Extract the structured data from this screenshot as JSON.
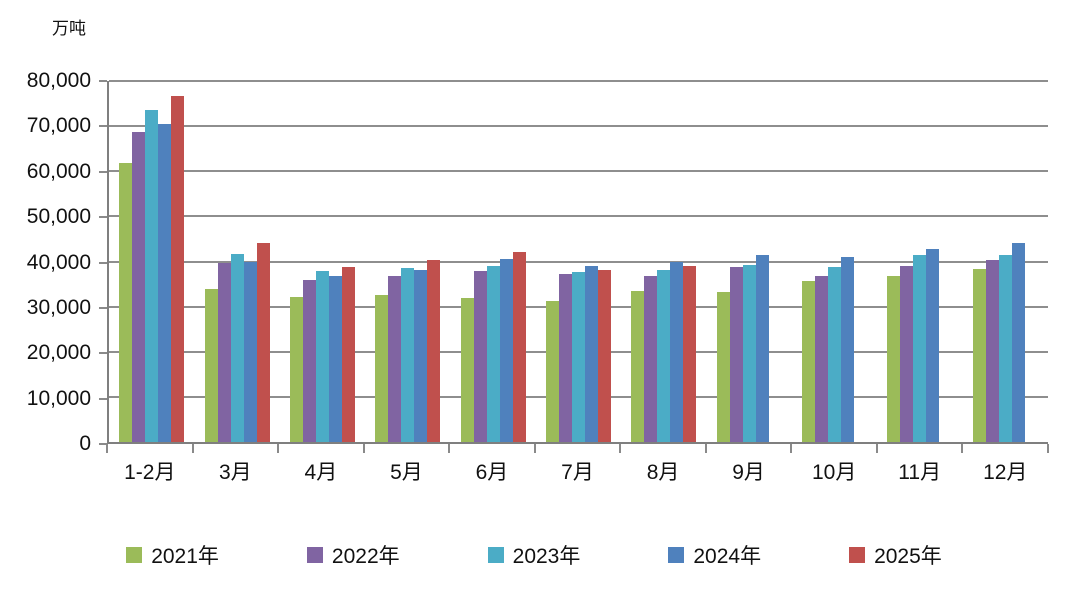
{
  "chart_data": {
    "type": "bar",
    "title": "",
    "xlabel": "",
    "ylabel": "万吨",
    "unit_label": "万吨",
    "categories": [
      "1-2月",
      "3月",
      "4月",
      "5月",
      "6月",
      "7月",
      "8月",
      "9月",
      "10月",
      "11月",
      "12月"
    ],
    "series": [
      {
        "name": "2021年",
        "color": "#9BBB59",
        "values": [
          61800,
          33900,
          32100,
          32600,
          32000,
          31300,
          33500,
          33200,
          35700,
          36900,
          38300
        ]
      },
      {
        "name": "2022年",
        "color": "#8064A2",
        "values": [
          68800,
          39600,
          36000,
          36700,
          37800,
          37200,
          36900,
          38700,
          36900,
          38900,
          40300
        ]
      },
      {
        "name": "2023年",
        "color": "#4BACC6",
        "values": [
          73600,
          41600,
          38000,
          38500,
          39000,
          37700,
          38200,
          39300,
          38700,
          41500,
          41500
        ]
      },
      {
        "name": "2024年",
        "color": "#4F81BD",
        "values": [
          70500,
          39800,
          36900,
          38200,
          40600,
          38900,
          39900,
          41500,
          41100,
          42700,
          44000
        ]
      },
      {
        "name": "2025年",
        "color": "#C0504D",
        "values": [
          76700,
          44100,
          38800,
          40400,
          42000,
          38100,
          38900,
          null,
          null,
          null,
          null
        ]
      }
    ],
    "ylim": [
      0,
      80000
    ],
    "ytick_step": 10000,
    "ytick_labels": [
      "0",
      "10,000",
      "20,000",
      "30,000",
      "40,000",
      "50,000",
      "60,000",
      "70,000",
      "80,000"
    ],
    "grid": "horizontal",
    "legend_position": "bottom",
    "gridline_color": "#8e8e8e",
    "axis_color": "#7f7f7f"
  }
}
